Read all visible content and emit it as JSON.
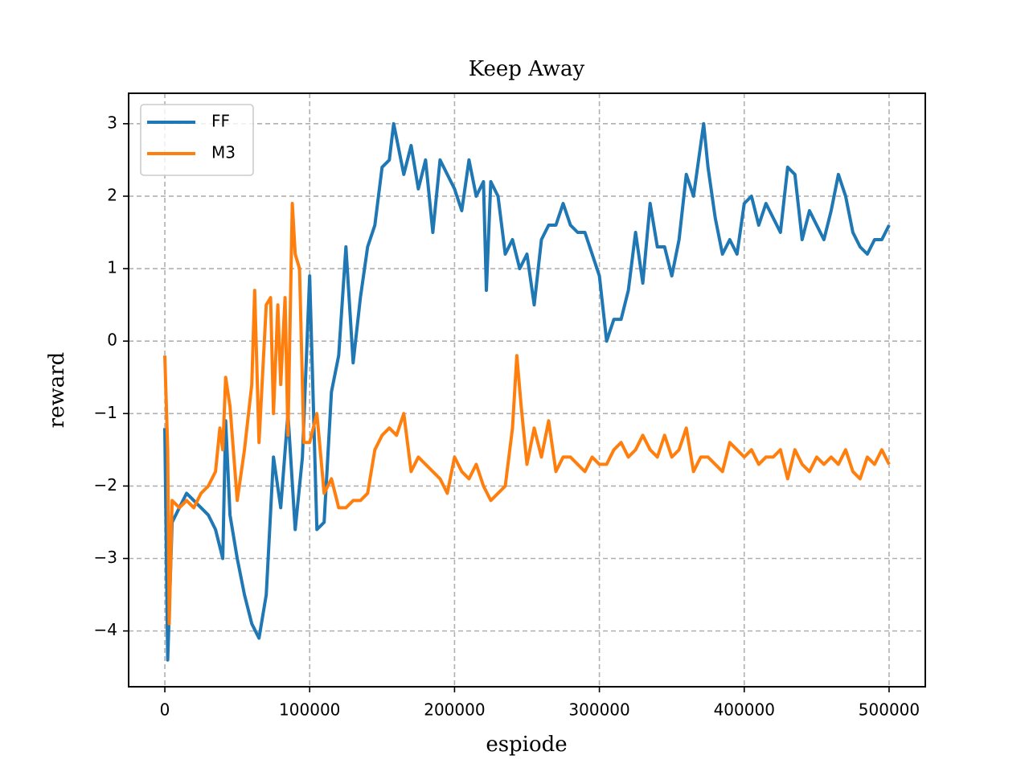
{
  "chart_data": {
    "type": "line",
    "title": "Keep Away",
    "x_label": "espiode",
    "y_label": "reward",
    "xlim": [
      -25000,
      525000
    ],
    "ylim": [
      -4.77,
      3.42
    ],
    "xticks": [
      0,
      100000,
      200000,
      300000,
      400000,
      500000
    ],
    "yticks": [
      {
        "value": -4,
        "label": "−4"
      },
      {
        "value": -3,
        "label": "−3"
      },
      {
        "value": -2,
        "label": "−2"
      },
      {
        "value": -1,
        "label": "−1"
      },
      0,
      1,
      2,
      3
    ],
    "grid": true,
    "legend": "upper left",
    "series": [
      {
        "name": "FF",
        "color": "#1f77b4",
        "x": [
          0,
          2000,
          5000,
          10000,
          15000,
          20000,
          25000,
          30000,
          35000,
          40000,
          42000,
          45000,
          50000,
          55000,
          60000,
          65000,
          70000,
          75000,
          80000,
          85000,
          90000,
          95000,
          100000,
          105000,
          110000,
          115000,
          120000,
          125000,
          130000,
          135000,
          140000,
          145000,
          150000,
          155000,
          158000,
          165000,
          170000,
          175000,
          180000,
          185000,
          190000,
          200000,
          205000,
          210000,
          215000,
          220000,
          222000,
          225000,
          230000,
          235000,
          240000,
          245000,
          250000,
          255000,
          260000,
          265000,
          270000,
          275000,
          280000,
          285000,
          290000,
          295000,
          300000,
          305000,
          310000,
          315000,
          320000,
          325000,
          330000,
          335000,
          340000,
          345000,
          350000,
          355000,
          360000,
          365000,
          372000,
          375000,
          380000,
          385000,
          390000,
          395000,
          400000,
          405000,
          410000,
          415000,
          420000,
          425000,
          430000,
          435000,
          440000,
          445000,
          450000,
          455000,
          460000,
          465000,
          470000,
          475000,
          480000,
          485000,
          490000,
          495000,
          500000
        ],
        "values": [
          -1.2,
          -4.4,
          -2.5,
          -2.3,
          -2.1,
          -2.2,
          -2.3,
          -2.4,
          -2.6,
          -3.0,
          -1.1,
          -2.4,
          -3.0,
          -3.5,
          -3.9,
          -4.1,
          -3.5,
          -1.6,
          -2.3,
          -1.0,
          -2.6,
          -1.6,
          0.9,
          -2.6,
          -2.5,
          -0.7,
          -0.2,
          1.3,
          -0.3,
          0.6,
          1.3,
          1.6,
          2.4,
          2.5,
          3.0,
          2.3,
          2.7,
          2.1,
          2.5,
          1.5,
          2.5,
          2.1,
          1.8,
          2.5,
          2.0,
          2.2,
          0.7,
          2.2,
          2.0,
          1.2,
          1.4,
          1.0,
          1.2,
          0.5,
          1.4,
          1.6,
          1.6,
          1.9,
          1.6,
          1.5,
          1.5,
          1.2,
          0.9,
          0.0,
          0.3,
          0.3,
          0.7,
          1.5,
          0.8,
          1.9,
          1.3,
          1.3,
          0.9,
          1.4,
          2.3,
          2.0,
          3.0,
          2.4,
          1.7,
          1.2,
          1.4,
          1.2,
          1.9,
          2.0,
          1.6,
          1.9,
          1.7,
          1.5,
          2.4,
          2.3,
          1.4,
          1.8,
          1.6,
          1.4,
          1.8,
          2.3,
          2.0,
          1.5,
          1.3,
          1.2,
          1.4,
          1.4,
          1.6
        ]
      },
      {
        "name": "M3",
        "color": "#ff7f0e",
        "x": [
          0,
          2000,
          3000,
          5000,
          10000,
          15000,
          20000,
          25000,
          30000,
          35000,
          38000,
          40000,
          42000,
          45000,
          50000,
          55000,
          60000,
          62000,
          65000,
          70000,
          73000,
          75000,
          78000,
          80000,
          83000,
          85000,
          88000,
          90000,
          93000,
          96000,
          100000,
          105000,
          110000,
          115000,
          120000,
          125000,
          130000,
          135000,
          140000,
          145000,
          150000,
          155000,
          160000,
          165000,
          170000,
          175000,
          180000,
          185000,
          190000,
          195000,
          200000,
          205000,
          210000,
          215000,
          220000,
          225000,
          230000,
          235000,
          240000,
          243000,
          246000,
          250000,
          255000,
          260000,
          265000,
          270000,
          275000,
          280000,
          285000,
          290000,
          295000,
          300000,
          305000,
          310000,
          315000,
          320000,
          325000,
          330000,
          335000,
          340000,
          345000,
          350000,
          355000,
          360000,
          365000,
          370000,
          375000,
          380000,
          385000,
          390000,
          395000,
          400000,
          405000,
          410000,
          415000,
          420000,
          425000,
          430000,
          435000,
          440000,
          445000,
          450000,
          455000,
          460000,
          465000,
          470000,
          475000,
          480000,
          485000,
          490000,
          495000,
          500000
        ],
        "values": [
          -0.2,
          -1.5,
          -3.9,
          -2.2,
          -2.3,
          -2.2,
          -2.3,
          -2.1,
          -2.0,
          -1.8,
          -1.2,
          -1.5,
          -0.5,
          -0.9,
          -2.2,
          -1.5,
          -0.6,
          0.7,
          -1.4,
          0.5,
          0.6,
          -1.0,
          0.5,
          -0.6,
          0.6,
          -1.3,
          1.9,
          1.2,
          1.0,
          -1.4,
          -1.4,
          -1.0,
          -2.1,
          -1.9,
          -2.3,
          -2.3,
          -2.2,
          -2.2,
          -2.1,
          -1.5,
          -1.3,
          -1.2,
          -1.3,
          -1.0,
          -1.8,
          -1.6,
          -1.7,
          -1.8,
          -1.9,
          -2.1,
          -1.6,
          -1.8,
          -1.9,
          -1.7,
          -2.0,
          -2.2,
          -2.1,
          -2.0,
          -1.2,
          -0.2,
          -0.9,
          -1.7,
          -1.2,
          -1.6,
          -1.1,
          -1.8,
          -1.6,
          -1.6,
          -1.7,
          -1.8,
          -1.6,
          -1.7,
          -1.7,
          -1.5,
          -1.4,
          -1.6,
          -1.5,
          -1.3,
          -1.5,
          -1.6,
          -1.3,
          -1.6,
          -1.5,
          -1.2,
          -1.8,
          -1.6,
          -1.6,
          -1.7,
          -1.8,
          -1.4,
          -1.5,
          -1.6,
          -1.5,
          -1.7,
          -1.6,
          -1.6,
          -1.5,
          -1.9,
          -1.5,
          -1.7,
          -1.8,
          -1.6,
          -1.7,
          -1.6,
          -1.7,
          -1.5,
          -1.8,
          -1.9,
          -1.6,
          -1.7,
          -1.5,
          -1.7
        ]
      }
    ]
  }
}
